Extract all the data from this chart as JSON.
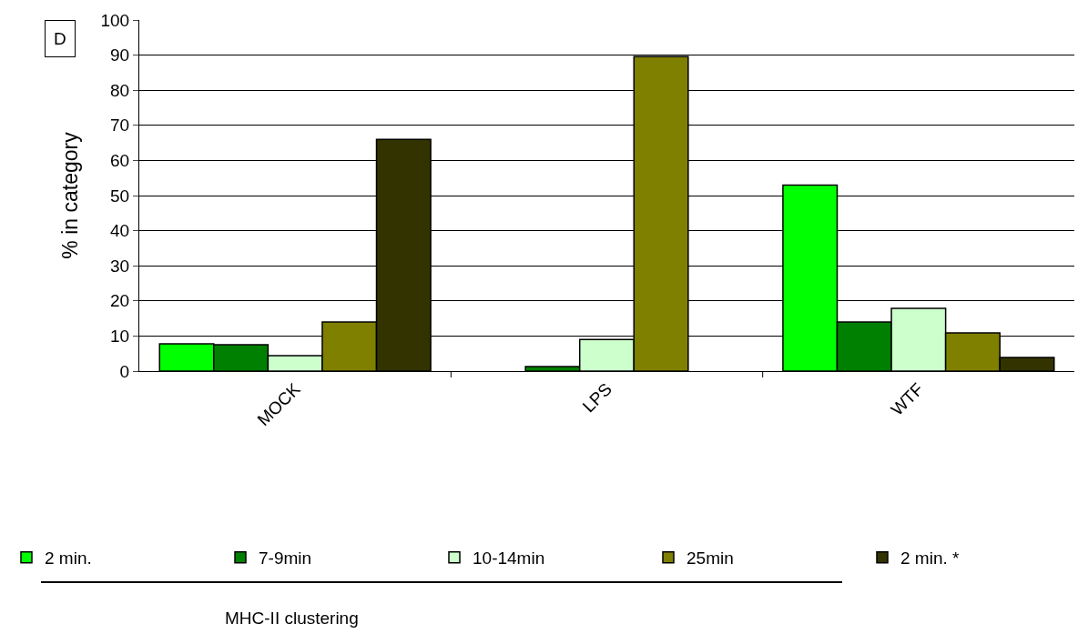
{
  "chart_data": {
    "type": "bar",
    "ylabel": "% in category",
    "legend_title": "MHC-II clustering",
    "annotations": [
      "D"
    ],
    "categories": [
      "MOCK",
      "LPS",
      "WTF"
    ],
    "series": [
      {
        "name": "2 min.",
        "color": "#00ff00",
        "values": [
          7.8,
          null,
          53
        ]
      },
      {
        "name": "7-9min",
        "color": "#008000",
        "values": [
          7.5,
          1.3,
          14
        ]
      },
      {
        "name": "10-14min",
        "color": "#ccffcc",
        "values": [
          4.4,
          9,
          17.9
        ]
      },
      {
        "name": "25min",
        "color": "#808000",
        "values": [
          14,
          89.6,
          10.9
        ]
      },
      {
        "name": "2 min. *",
        "color": "#333300",
        "values": [
          66,
          null,
          3.9
        ]
      }
    ],
    "ylim": [
      0,
      100
    ],
    "yticks": [
      0,
      10,
      20,
      30,
      40,
      50,
      60,
      70,
      80,
      90,
      100
    ],
    "grid": "y",
    "legend": "bottom"
  }
}
